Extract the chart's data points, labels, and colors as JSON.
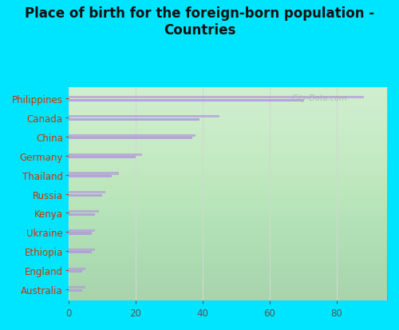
{
  "title": "Place of birth for the foreign-born population -\nCountries",
  "categories": [
    "Philippines",
    "Canada",
    "China",
    "Germany",
    "Thailand",
    "Russia",
    "Kenya",
    "Ukraine",
    "Ethiopia",
    "England",
    "Australia"
  ],
  "values1": [
    88,
    45,
    38,
    22,
    15,
    11,
    9,
    8,
    8,
    5,
    5
  ],
  "values2": [
    70,
    39,
    37,
    20,
    13,
    10,
    8,
    7,
    7,
    4,
    4
  ],
  "bar_color": "#b39ddb",
  "background_outer": "#00e5ff",
  "background_inner_top": "#f0f4f0",
  "background_inner_bottom": "#c8ecc8",
  "grid_color": "#d0d8d0",
  "title_fontsize": 12,
  "tick_fontsize": 8.5,
  "label_color": "#cc3300",
  "tick_color": "#555555",
  "xlim": [
    0,
    95
  ],
  "xticks": [
    0,
    20,
    40,
    60,
    80
  ],
  "watermark": "City-Data.com"
}
